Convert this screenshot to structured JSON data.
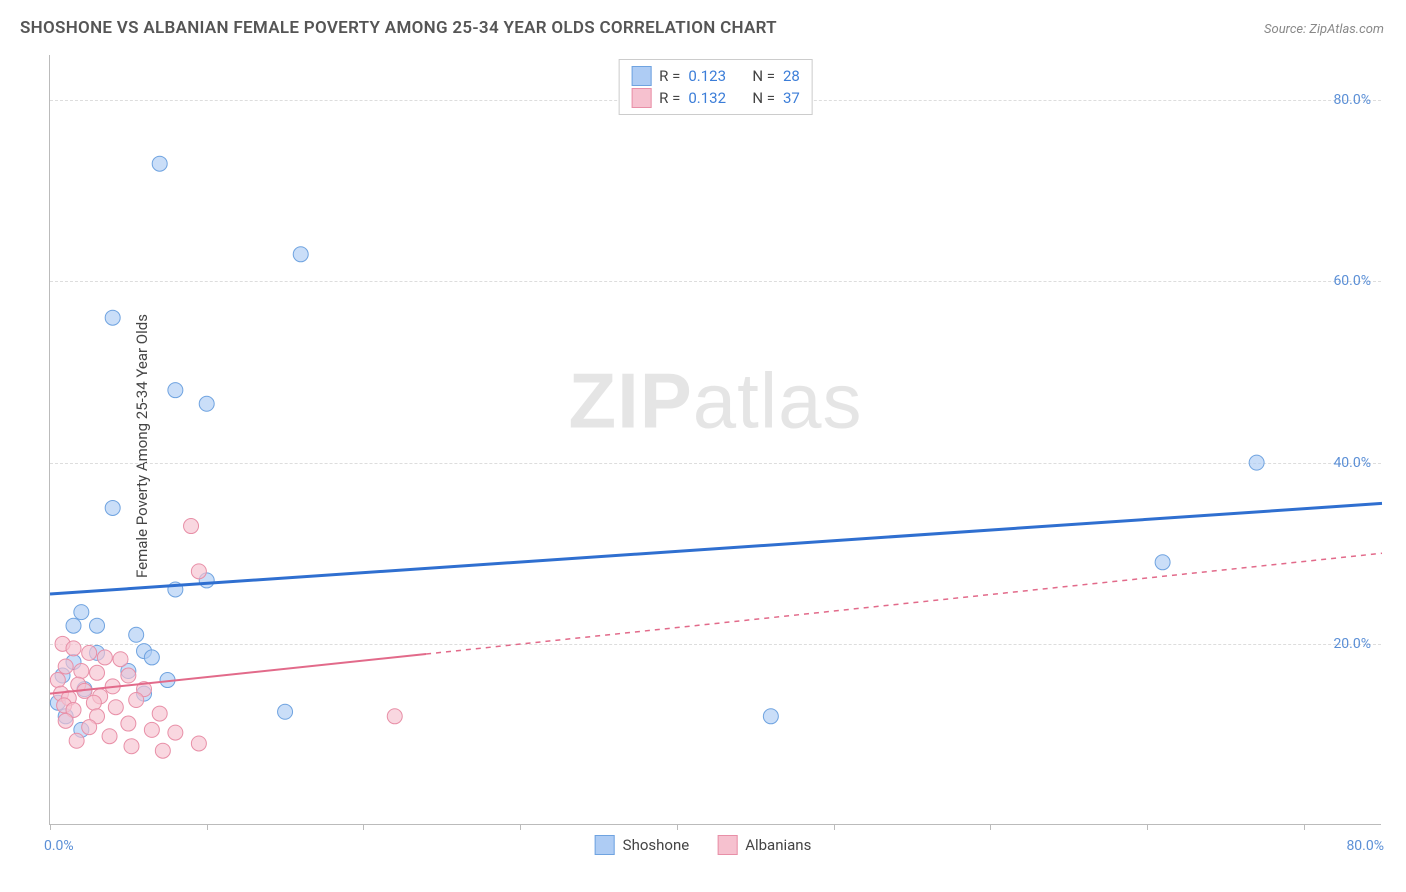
{
  "title": "SHOSHONE VS ALBANIAN FEMALE POVERTY AMONG 25-34 YEAR OLDS CORRELATION CHART",
  "source": "Source: ZipAtlas.com",
  "yaxis_label": "Female Poverty Among 25-34 Year Olds",
  "watermark_bold": "ZIP",
  "watermark_light": "atlas",
  "chart": {
    "type": "scatter",
    "xlim": [
      0,
      85
    ],
    "ylim": [
      0,
      85
    ],
    "xtick_min_label": "0.0%",
    "xtick_max_label": "80.0%",
    "ytick_labels": [
      {
        "v": 20,
        "label": "20.0%"
      },
      {
        "v": 40,
        "label": "40.0%"
      },
      {
        "v": 60,
        "label": "60.0%"
      },
      {
        "v": 80,
        "label": "80.0%"
      }
    ],
    "xtick_positions": [
      0,
      10,
      20,
      30,
      40,
      50,
      60,
      70,
      80
    ],
    "grid_dash_color": "#dddddd",
    "axis_color": "#bbbbbb",
    "background_color": "#ffffff",
    "series": [
      {
        "name": "Shoshone",
        "color_fill": "#aeccf4",
        "color_stroke": "#6fa3e0",
        "marker_r": 7.5,
        "trend_color": "#2f6fd0",
        "trend_width": 3,
        "trend_dash": "none",
        "trend_solid_to_x": 85,
        "trend_y_start": 25.5,
        "trend_y_end": 35.5,
        "R": "0.123",
        "N": "28",
        "points": [
          [
            7,
            73
          ],
          [
            16,
            63
          ],
          [
            4,
            56
          ],
          [
            8,
            48
          ],
          [
            10,
            46.5
          ],
          [
            77,
            40
          ],
          [
            4,
            35
          ],
          [
            71,
            29
          ],
          [
            10,
            27
          ],
          [
            8,
            26
          ],
          [
            2,
            23.5
          ],
          [
            3,
            22
          ],
          [
            1.5,
            22
          ],
          [
            5.5,
            21
          ],
          [
            6,
            19.2
          ],
          [
            3,
            19
          ],
          [
            6.5,
            18.5
          ],
          [
            1.5,
            18
          ],
          [
            5,
            17
          ],
          [
            0.8,
            16.5
          ],
          [
            7.5,
            16
          ],
          [
            2.2,
            15
          ],
          [
            6,
            14.5
          ],
          [
            0.5,
            13.5
          ],
          [
            46,
            12
          ],
          [
            15,
            12.5
          ],
          [
            1,
            12
          ],
          [
            2,
            10.5
          ]
        ]
      },
      {
        "name": "Albanians",
        "color_fill": "#f6c1cf",
        "color_stroke": "#e88fa7",
        "marker_r": 7.5,
        "trend_color": "#e26a8a",
        "trend_width": 2,
        "trend_dash": "5,5",
        "trend_solid_to_x": 24,
        "trend_y_start": 14.5,
        "trend_y_end": 30,
        "R": "0.132",
        "N": "37",
        "points": [
          [
            9,
            33
          ],
          [
            9.5,
            28
          ],
          [
            0.8,
            20
          ],
          [
            1.5,
            19.5
          ],
          [
            2.5,
            19
          ],
          [
            3.5,
            18.5
          ],
          [
            4.5,
            18.3
          ],
          [
            1,
            17.5
          ],
          [
            2,
            17
          ],
          [
            3,
            16.8
          ],
          [
            5,
            16.5
          ],
          [
            0.5,
            16
          ],
          [
            1.8,
            15.5
          ],
          [
            4,
            15.3
          ],
          [
            6,
            15
          ],
          [
            2.2,
            14.8
          ],
          [
            0.7,
            14.5
          ],
          [
            3.2,
            14.2
          ],
          [
            1.2,
            14
          ],
          [
            5.5,
            13.8
          ],
          [
            2.8,
            13.5
          ],
          [
            0.9,
            13.2
          ],
          [
            4.2,
            13
          ],
          [
            1.5,
            12.7
          ],
          [
            7,
            12.3
          ],
          [
            3,
            12
          ],
          [
            22,
            12
          ],
          [
            1,
            11.5
          ],
          [
            5,
            11.2
          ],
          [
            2.5,
            10.8
          ],
          [
            6.5,
            10.5
          ],
          [
            8,
            10.2
          ],
          [
            3.8,
            9.8
          ],
          [
            1.7,
            9.3
          ],
          [
            9.5,
            9
          ],
          [
            5.2,
            8.7
          ],
          [
            7.2,
            8.2
          ]
        ]
      }
    ]
  },
  "legend_top_labels": {
    "R": "R =",
    "N": "N ="
  },
  "legend_bottom": [
    {
      "label": "Shoshone",
      "fill": "#aeccf4",
      "stroke": "#6fa3e0"
    },
    {
      "label": "Albanians",
      "fill": "#f6c1cf",
      "stroke": "#e88fa7"
    }
  ]
}
